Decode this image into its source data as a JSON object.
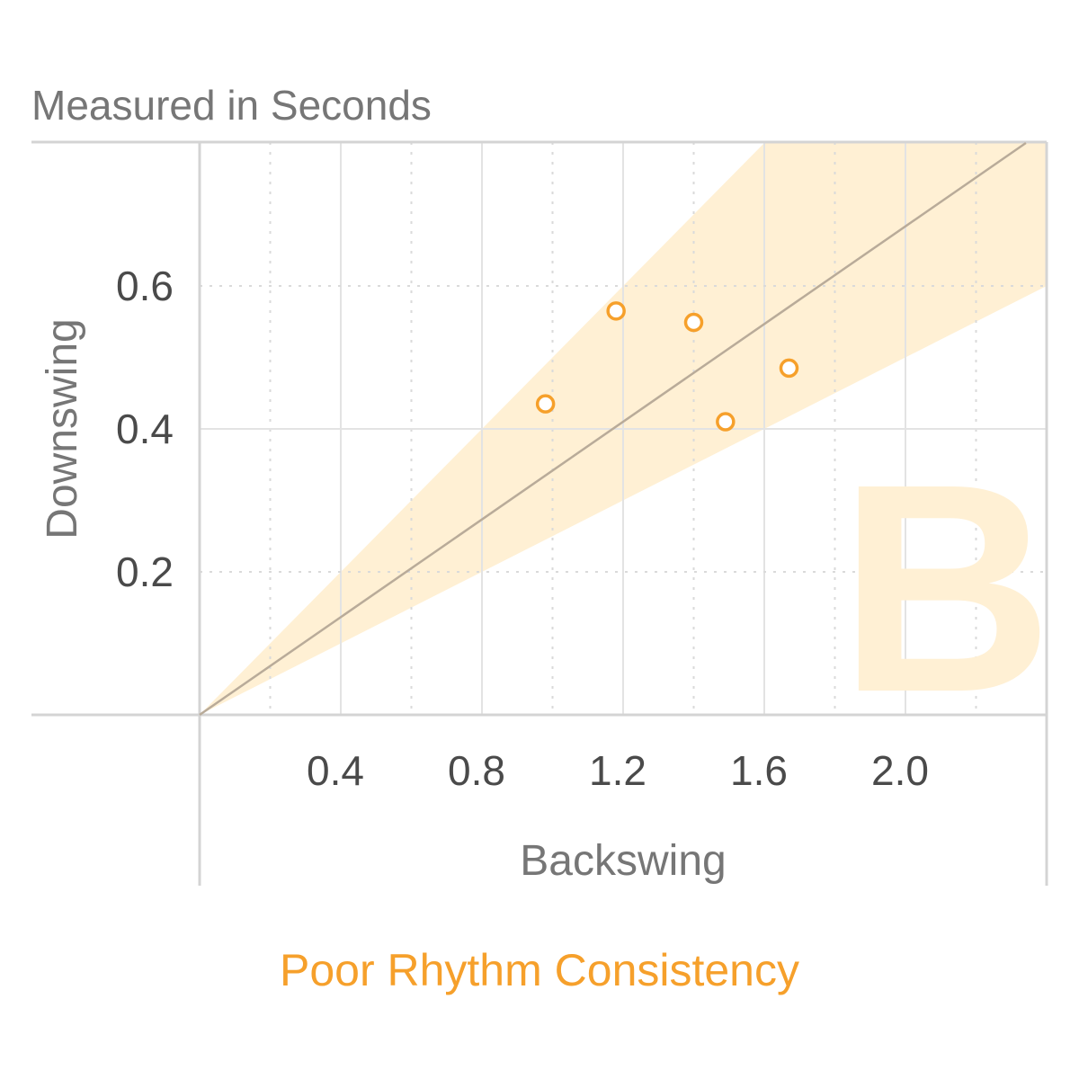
{
  "header": {
    "units_label": "Measured in Seconds"
  },
  "footer": {
    "status_text": "Poor Rhythm Consistency"
  },
  "grade": {
    "letter": "B"
  },
  "colors": {
    "accent": "#f6a02b",
    "band_fill": "#fff0d4",
    "grade_fill": "#fff0d4",
    "reference_line": "#b9ab99",
    "grid_solid": "#e3e3e3",
    "grid_dotted": "#dadada",
    "axis_line": "#d4d4d4",
    "tick_text": "#4a4a4a",
    "label_text": "#767676"
  },
  "chart_data": {
    "type": "scatter",
    "title": "Measured in Seconds",
    "xlabel": "Backswing",
    "ylabel": "Downswing",
    "xlim": [
      0,
      2.4
    ],
    "ylim": [
      0,
      0.8
    ],
    "x_ticks": [
      0.4,
      0.8,
      1.2,
      1.6,
      2.0
    ],
    "x_tick_labels": [
      "0.4",
      "0.8",
      "1.2",
      "1.6",
      "2.0"
    ],
    "x_minor_ticks": [
      0.2,
      0.6,
      1.0,
      1.4,
      1.8,
      2.2
    ],
    "y_ticks": [
      0.2,
      0.4,
      0.6
    ],
    "y_tick_labels": [
      "0.2",
      "0.4",
      "0.6"
    ],
    "y_minor_ticks": [
      0.2,
      0.6
    ],
    "grid": true,
    "reference_line": {
      "slope": 0.3417
    },
    "band": {
      "lower_slope": 0.25,
      "upper_slope": 0.5
    },
    "points": [
      {
        "x": 0.98,
        "y": 0.435
      },
      {
        "x": 1.18,
        "y": 0.565
      },
      {
        "x": 1.4,
        "y": 0.549
      },
      {
        "x": 1.49,
        "y": 0.41
      },
      {
        "x": 1.67,
        "y": 0.485
      }
    ]
  }
}
